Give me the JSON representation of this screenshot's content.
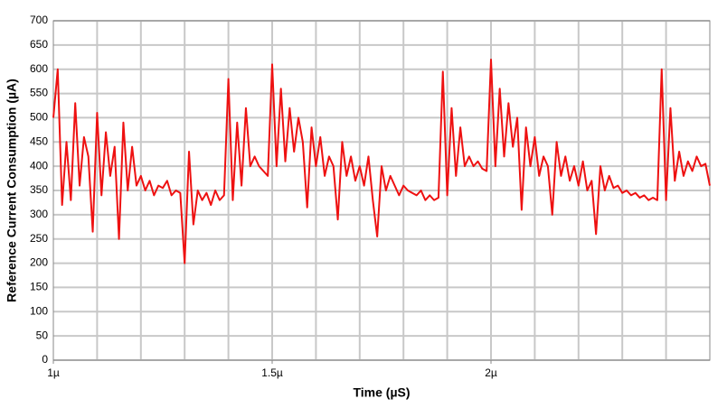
{
  "chart_data": {
    "type": "line",
    "xlabel": "Time (µS)",
    "ylabel": "Reference Current Consumption (µA)",
    "xlim": [
      1,
      2.5
    ],
    "xticks": [
      {
        "value": 1,
        "label": "1µ"
      },
      {
        "value": 1.5,
        "label": "1.5µ"
      },
      {
        "value": 2,
        "label": "2µ"
      }
    ],
    "xgrid": [
      1.1,
      1.2,
      1.3,
      1.4,
      1.5,
      1.6,
      1.7,
      1.8,
      1.9,
      2,
      2.1,
      2.2,
      2.3,
      2.4
    ],
    "ylim": [
      0,
      700
    ],
    "yticks": [
      0,
      50,
      100,
      150,
      200,
      250,
      300,
      350,
      400,
      450,
      500,
      550,
      600,
      650,
      700
    ],
    "grid": true,
    "x": [
      1.0,
      1.01,
      1.02,
      1.03,
      1.04,
      1.05,
      1.06,
      1.07,
      1.08,
      1.09,
      1.1,
      1.11,
      1.12,
      1.13,
      1.14,
      1.15,
      1.16,
      1.17,
      1.18,
      1.19,
      1.2,
      1.21,
      1.22,
      1.23,
      1.24,
      1.25,
      1.26,
      1.27,
      1.28,
      1.29,
      1.3,
      1.31,
      1.32,
      1.33,
      1.34,
      1.35,
      1.36,
      1.37,
      1.38,
      1.39,
      1.4,
      1.41,
      1.42,
      1.43,
      1.44,
      1.45,
      1.46,
      1.47,
      1.48,
      1.49,
      1.5,
      1.51,
      1.52,
      1.53,
      1.54,
      1.55,
      1.56,
      1.57,
      1.58,
      1.59,
      1.6,
      1.61,
      1.62,
      1.63,
      1.64,
      1.65,
      1.66,
      1.67,
      1.68,
      1.69,
      1.7,
      1.71,
      1.72,
      1.73,
      1.74,
      1.75,
      1.76,
      1.77,
      1.78,
      1.79,
      1.8,
      1.81,
      1.82,
      1.83,
      1.84,
      1.85,
      1.86,
      1.87,
      1.88,
      1.89,
      1.9,
      1.91,
      1.92,
      1.93,
      1.94,
      1.95,
      1.96,
      1.97,
      1.98,
      1.99,
      2.0,
      2.01,
      2.02,
      2.03,
      2.04,
      2.05,
      2.06,
      2.07,
      2.08,
      2.09,
      2.1,
      2.11,
      2.12,
      2.13,
      2.14,
      2.15,
      2.16,
      2.17,
      2.18,
      2.19,
      2.2,
      2.21,
      2.22,
      2.23,
      2.24,
      2.25,
      2.26,
      2.27,
      2.28,
      2.29,
      2.3,
      2.31,
      2.32,
      2.33,
      2.34,
      2.35,
      2.36,
      2.37,
      2.38,
      2.39,
      2.4,
      2.41,
      2.42,
      2.43,
      2.44,
      2.45,
      2.46,
      2.47,
      2.48,
      2.49,
      2.5
    ],
    "series": [
      {
        "name": "Reference Current",
        "color": "#ee1111",
        "values": [
          500,
          600,
          320,
          450,
          330,
          530,
          360,
          460,
          420,
          265,
          510,
          340,
          470,
          380,
          440,
          250,
          490,
          350,
          440,
          360,
          380,
          350,
          370,
          340,
          360,
          355,
          370,
          340,
          350,
          345,
          200,
          430,
          280,
          350,
          330,
          345,
          320,
          350,
          330,
          340,
          580,
          330,
          490,
          360,
          520,
          400,
          420,
          400,
          390,
          380,
          610,
          400,
          560,
          410,
          520,
          430,
          500,
          450,
          315,
          480,
          400,
          460,
          380,
          420,
          400,
          290,
          450,
          380,
          420,
          370,
          400,
          360,
          420,
          330,
          255,
          400,
          350,
          380,
          360,
          340,
          360,
          350,
          345,
          340,
          350,
          330,
          340,
          330,
          335,
          595,
          340,
          520,
          380,
          480,
          400,
          420,
          400,
          410,
          395,
          390,
          620,
          400,
          560,
          420,
          530,
          440,
          500,
          310,
          480,
          400,
          460,
          380,
          420,
          400,
          300,
          450,
          380,
          420,
          370,
          400,
          360,
          410,
          350,
          370,
          260,
          400,
          350,
          380,
          355,
          360,
          345,
          350,
          340,
          345,
          335,
          340,
          330,
          335,
          330,
          600,
          330,
          520,
          370,
          430,
          380,
          410,
          390,
          420,
          400,
          405,
          360
        ]
      }
    ]
  }
}
